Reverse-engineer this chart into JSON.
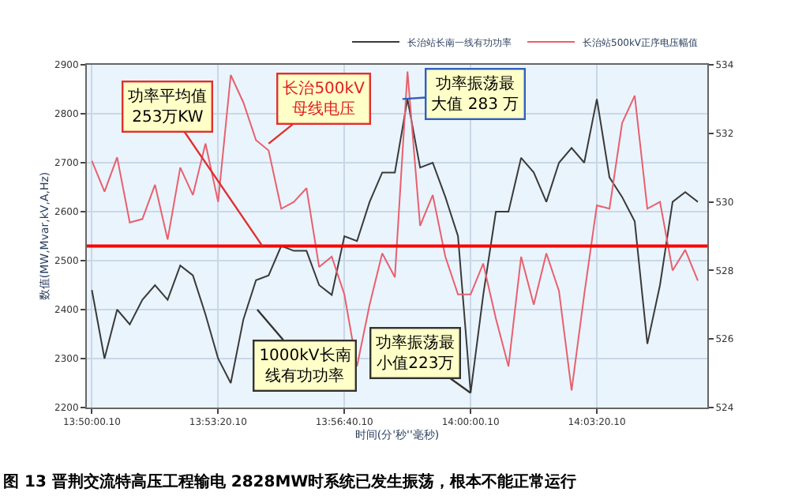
{
  "chart_data": {
    "type": "line",
    "xlabel": "时间(分'秒''毫秒)",
    "ylabel": "数值(MW,Mvar,kV,A,Hz)",
    "categories": [
      "13:50:00.10",
      null,
      null,
      null,
      null,
      null,
      null,
      null,
      null,
      null,
      "13:53:20.10",
      null,
      null,
      null,
      null,
      null,
      null,
      null,
      null,
      null,
      "13:56:40.10",
      null,
      null,
      null,
      null,
      null,
      null,
      null,
      null,
      null,
      "14:00:00.10",
      null,
      null,
      null,
      null,
      null,
      null,
      null,
      null,
      null,
      "14:03:20.10",
      null,
      null,
      null,
      null,
      null,
      null,
      null,
      null
    ],
    "series": [
      {
        "name": "长治站长南一线有功功率",
        "color": "#3a3a3a",
        "values": [
          2440,
          2300,
          2400,
          2370,
          2420,
          2450,
          2420,
          2490,
          2470,
          2390,
          2300,
          2250,
          2380,
          2460,
          2470,
          2530,
          2520,
          2520,
          2450,
          2430,
          2550,
          2540,
          2620,
          2680,
          2680,
          2830,
          2690,
          2700,
          2630,
          2550,
          2230,
          2430,
          2600,
          2600,
          2710,
          2680,
          2620,
          2700,
          2730,
          2700,
          2830,
          2670,
          2630,
          2580,
          2330,
          2450,
          2620,
          2640,
          2620
        ]
      },
      {
        "name": "长治站500kV正序电压幅值",
        "color": "#e8606e",
        "axis": "y2",
        "values": [
          531.2,
          530.3,
          531.3,
          529.4,
          529.5,
          530.5,
          528.9,
          531.0,
          530.2,
          531.7,
          530.0,
          533.7,
          532.9,
          531.8,
          531.5,
          529.8,
          530.0,
          530.4,
          528.1,
          528.4,
          527.3,
          525.2,
          527.0,
          528.5,
          527.8,
          533.8,
          529.3,
          530.2,
          528.4,
          527.3,
          527.3,
          528.2,
          526.6,
          525.2,
          528.4,
          527.0,
          528.5,
          527.4,
          524.5,
          527.3,
          529.9,
          529.8,
          532.3,
          533.1,
          529.8,
          530.0,
          528.0,
          528.6,
          527.7
        ]
      }
    ],
    "ylim": [
      2200,
      2900
    ],
    "yticks": [
      2200,
      2300,
      2400,
      2500,
      2600,
      2700,
      2800,
      2900
    ],
    "y2lim": [
      524,
      534
    ],
    "y2ticks": [
      524,
      526,
      528,
      530,
      532,
      534
    ],
    "ref_lines": [
      {
        "axis": "y",
        "value": 2530,
        "color": "#ff0000",
        "label": "功率平均值253万KW"
      }
    ],
    "annotations": [
      "长治500kV母线电压",
      "功率振荡最大值 283 万",
      {
        "text": "功率振荡最小值223万",
        "x": "14:00:00.10",
        "y": 2230
      },
      "1000kV长南线有功功率",
      "图 13 晋荆交流特高压工程输电 2828MW时系统已发生振荡，根本不能正常运行"
    ],
    "grid": true,
    "legend": "top right",
    "marker": "none",
    "line_style": "solid"
  }
}
